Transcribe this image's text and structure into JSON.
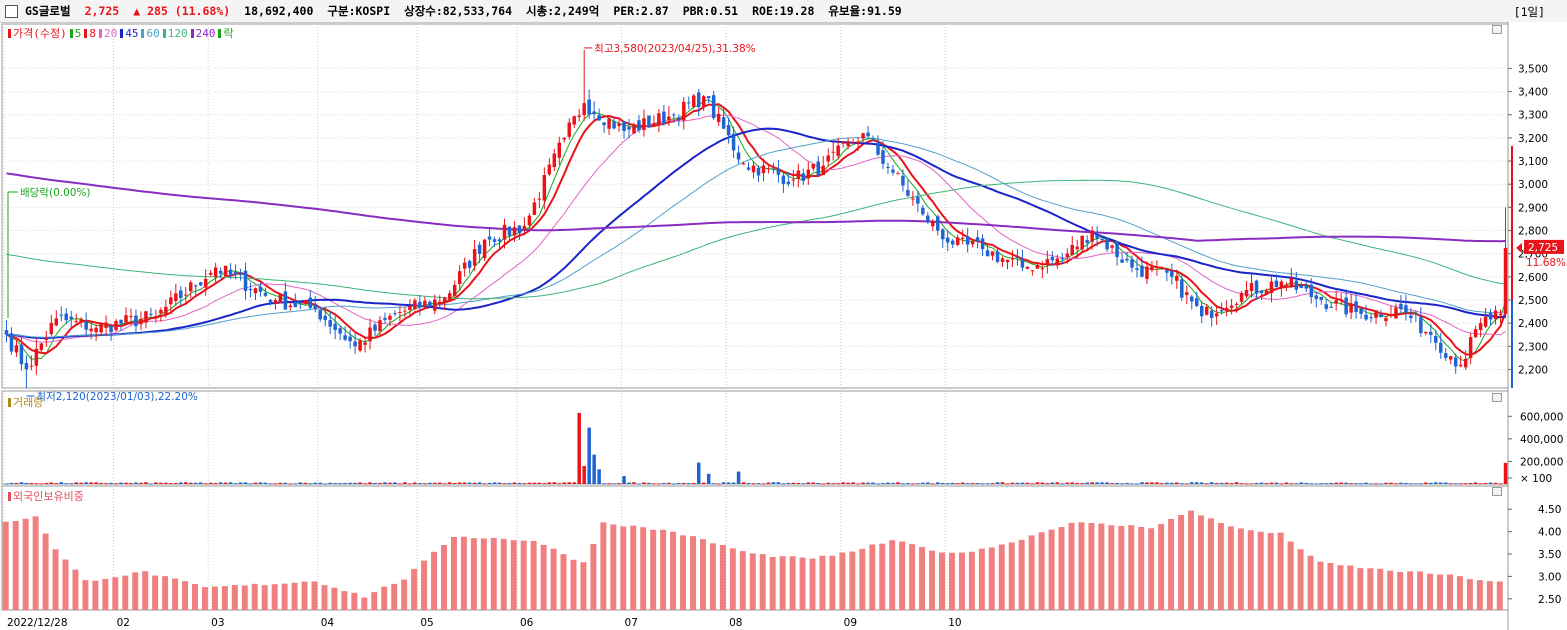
{
  "header": {
    "stock_name": "GS글로벌",
    "price": "2,725",
    "change": "▲ 285",
    "change_pct": "(11.68%)",
    "volume": "18,692,400",
    "market": "구분:KOSPI",
    "listed_shares": "상장수:82,533,764",
    "market_cap": "시총:2,249억",
    "per": "PER:2.87",
    "pbr": "PBR:0.51",
    "roe": "ROE:19.28",
    "retention": "유보율:91.59",
    "period": "[1일]"
  },
  "legend": {
    "items": [
      {
        "label": "가격(수정)",
        "color": "#e8141a"
      },
      {
        "label": "5",
        "color": "#1aa51a"
      },
      {
        "label": "8",
        "color": "#e8141a"
      },
      {
        "label": "20",
        "color": "#e066c8"
      },
      {
        "label": "45",
        "color": "#1a24c8"
      },
      {
        "label": "60",
        "color": "#52a0c8"
      },
      {
        "label": "120",
        "color": "#3cb478"
      },
      {
        "label": "240",
        "color": "#8a2cc0"
      },
      {
        "label": "락",
        "color": "#1aa51a"
      }
    ]
  },
  "volume_panel": {
    "title": "거래량",
    "title_color": "#b08a1a"
  },
  "foreign_panel": {
    "title": "외국인보유비중",
    "title_color": "#e05060"
  },
  "colors": {
    "up": "#e8141a",
    "down": "#1e64d2",
    "grid": "#b4b4b4"
  },
  "chart_data": [
    {
      "type": "candlestick",
      "title": "",
      "x_ticks": [
        "2022/12/28",
        "02",
        "03",
        "04",
        "05",
        "06",
        "07",
        "08",
        "09",
        "10"
      ],
      "y_ticks": [
        "3,500",
        "3,400",
        "3,300",
        "3,200",
        "3,100",
        "3,000",
        "2,900",
        "2,800",
        "2,700",
        "2,600",
        "2,500",
        "2,400",
        "2,300",
        "2,200"
      ],
      "ylim": [
        2120,
        3640
      ],
      "current_price_label": "2,725",
      "current_pct_label": "11.68%",
      "annotations": {
        "high": "최고3,580(2023/04/25),31.38%",
        "low": "최저2,120(2023/01/03),22.20%",
        "dividend": "배당락(0.00%)"
      },
      "key_points": [
        {
          "day": 0,
          "close": 2350
        },
        {
          "day": 4,
          "close": 2200
        },
        {
          "day": 10,
          "close": 2420
        },
        {
          "day": 18,
          "close": 2380
        },
        {
          "day": 30,
          "close": 2430
        },
        {
          "day": 42,
          "close": 2640
        },
        {
          "day": 54,
          "close": 2500
        },
        {
          "day": 62,
          "close": 2460
        },
        {
          "day": 70,
          "close": 2300
        },
        {
          "day": 78,
          "close": 2440
        },
        {
          "day": 88,
          "close": 2510
        },
        {
          "day": 96,
          "close": 2760
        },
        {
          "day": 104,
          "close": 2820
        },
        {
          "day": 112,
          "close": 3200
        },
        {
          "day": 116,
          "close": 3350
        },
        {
          "day": 124,
          "close": 3230
        },
        {
          "day": 134,
          "close": 3300
        },
        {
          "day": 140,
          "close": 3380
        },
        {
          "day": 148,
          "close": 3090
        },
        {
          "day": 158,
          "close": 3020
        },
        {
          "day": 164,
          "close": 3080
        },
        {
          "day": 172,
          "close": 3220
        },
        {
          "day": 178,
          "close": 3050
        },
        {
          "day": 184,
          "close": 2870
        },
        {
          "day": 190,
          "close": 2740
        },
        {
          "day": 196,
          "close": 2720
        },
        {
          "day": 204,
          "close": 2640
        },
        {
          "day": 212,
          "close": 2680
        },
        {
          "day": 218,
          "close": 2800
        },
        {
          "day": 226,
          "close": 2640
        },
        {
          "day": 234,
          "close": 2600
        },
        {
          "day": 240,
          "close": 2430
        },
        {
          "day": 248,
          "close": 2530
        },
        {
          "day": 256,
          "close": 2580
        },
        {
          "day": 264,
          "close": 2500
        },
        {
          "day": 272,
          "close": 2440
        },
        {
          "day": 280,
          "close": 2460
        },
        {
          "day": 286,
          "close": 2350
        },
        {
          "day": 292,
          "close": 2220
        },
        {
          "day": 296,
          "close": 2400
        },
        {
          "day": 300,
          "close": 2440
        },
        {
          "day": 301,
          "close": 2725
        }
      ],
      "series": [
        {
          "name": "5",
          "color": "#1aa51a"
        },
        {
          "name": "8",
          "color": "#e8141a"
        },
        {
          "name": "20",
          "color": "#e066c8"
        },
        {
          "name": "45",
          "color": "#1a24c8"
        },
        {
          "name": "60",
          "color": "#52a0c8"
        },
        {
          "name": "120",
          "color": "#3cb478"
        },
        {
          "name": "240",
          "color": "#8a2cc0"
        }
      ]
    },
    {
      "type": "bar",
      "title": "거래량",
      "y_ticks": [
        "600,000",
        "400,000",
        "200,000",
        "× 100"
      ],
      "ylim": [
        0,
        700000
      ],
      "notable_bars": [
        {
          "day": 115,
          "value": 630000
        },
        {
          "day": 116,
          "value": 160000
        },
        {
          "day": 117,
          "value": 500000
        },
        {
          "day": 118,
          "value": 260000
        },
        {
          "day": 119,
          "value": 130000
        },
        {
          "day": 124,
          "value": 70000
        },
        {
          "day": 139,
          "value": 190000
        },
        {
          "day": 141,
          "value": 90000
        },
        {
          "day": 147,
          "value": 110000
        },
        {
          "day": 301,
          "value": 187000
        }
      ]
    },
    {
      "type": "bar",
      "title": "외국인보유비중",
      "y_ticks": [
        "4.50",
        "4.00",
        "3.50",
        "3.00",
        "2.50"
      ],
      "ylim": [
        2.25,
        4.75
      ],
      "key_points": [
        {
          "day": 0,
          "value": 4.2
        },
        {
          "day": 6,
          "value": 4.35
        },
        {
          "day": 10,
          "value": 3.6
        },
        {
          "day": 16,
          "value": 2.9
        },
        {
          "day": 28,
          "value": 3.1
        },
        {
          "day": 40,
          "value": 2.75
        },
        {
          "day": 56,
          "value": 2.85
        },
        {
          "day": 62,
          "value": 2.9
        },
        {
          "day": 72,
          "value": 2.55
        },
        {
          "day": 80,
          "value": 2.95
        },
        {
          "day": 90,
          "value": 3.9
        },
        {
          "day": 106,
          "value": 3.8
        },
        {
          "day": 116,
          "value": 3.3
        },
        {
          "day": 120,
          "value": 4.2
        },
        {
          "day": 134,
          "value": 4.0
        },
        {
          "day": 150,
          "value": 3.5
        },
        {
          "day": 160,
          "value": 3.4
        },
        {
          "day": 166,
          "value": 3.45
        },
        {
          "day": 178,
          "value": 3.8
        },
        {
          "day": 190,
          "value": 3.5
        },
        {
          "day": 200,
          "value": 3.7
        },
        {
          "day": 214,
          "value": 4.2
        },
        {
          "day": 230,
          "value": 4.1
        },
        {
          "day": 238,
          "value": 4.45
        },
        {
          "day": 248,
          "value": 4.05
        },
        {
          "day": 256,
          "value": 3.95
        },
        {
          "day": 264,
          "value": 3.3
        },
        {
          "day": 276,
          "value": 3.15
        },
        {
          "day": 288,
          "value": 3.05
        },
        {
          "day": 301,
          "value": 2.85
        }
      ]
    }
  ]
}
